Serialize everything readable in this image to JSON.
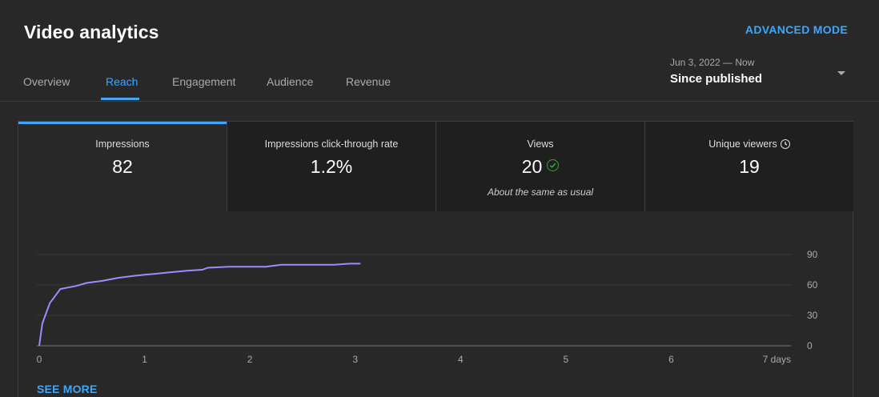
{
  "header": {
    "title": "Video analytics",
    "advanced_mode": "ADVANCED MODE"
  },
  "tabs": [
    {
      "label": "Overview",
      "active": false
    },
    {
      "label": "Reach",
      "active": true
    },
    {
      "label": "Engagement",
      "active": false
    },
    {
      "label": "Audience",
      "active": false
    },
    {
      "label": "Revenue",
      "active": false
    }
  ],
  "date_range": {
    "range": "Jun 3, 2022 — Now",
    "label": "Since published"
  },
  "metrics": [
    {
      "label": "Impressions",
      "value": "82"
    },
    {
      "label": "Impressions click-through rate",
      "value": "1.2%"
    },
    {
      "label": "Views",
      "value": "20",
      "note": "About the same as usual"
    },
    {
      "label": "Unique viewers",
      "value": "19"
    }
  ],
  "colors": {
    "accent": "#3ea6ff",
    "line": "#9d8cff",
    "check": "#2ba640"
  },
  "icons": [
    "clock-icon",
    "check-circle-icon",
    "dropdown-arrow-icon"
  ],
  "see_more": "SEE MORE",
  "chart_data": {
    "type": "line",
    "series": [
      {
        "points": [
          [
            0,
            0
          ],
          [
            0.03,
            22
          ],
          [
            0.1,
            42
          ],
          [
            0.2,
            56
          ],
          [
            0.25,
            57
          ],
          [
            0.35,
            59
          ],
          [
            0.45,
            62
          ],
          [
            0.6,
            64
          ],
          [
            0.75,
            67
          ],
          [
            0.9,
            69
          ],
          [
            1.0,
            70
          ],
          [
            1.1,
            71
          ],
          [
            1.2,
            72
          ],
          [
            1.4,
            74
          ],
          [
            1.55,
            75
          ],
          [
            1.6,
            77
          ],
          [
            1.8,
            78
          ],
          [
            2.0,
            78
          ],
          [
            2.15,
            78
          ],
          [
            2.3,
            80
          ],
          [
            2.6,
            80
          ],
          [
            2.8,
            80
          ],
          [
            2.95,
            81
          ],
          [
            3.05,
            81
          ]
        ]
      }
    ],
    "x_ticks": [
      "0",
      "1",
      "2",
      "3",
      "4",
      "5",
      "6",
      "7 days"
    ],
    "y_ticks": [
      "0",
      "30",
      "60",
      "90"
    ],
    "xlim": [
      0,
      7
    ],
    "ylim": [
      0,
      90
    ],
    "grid": true
  }
}
